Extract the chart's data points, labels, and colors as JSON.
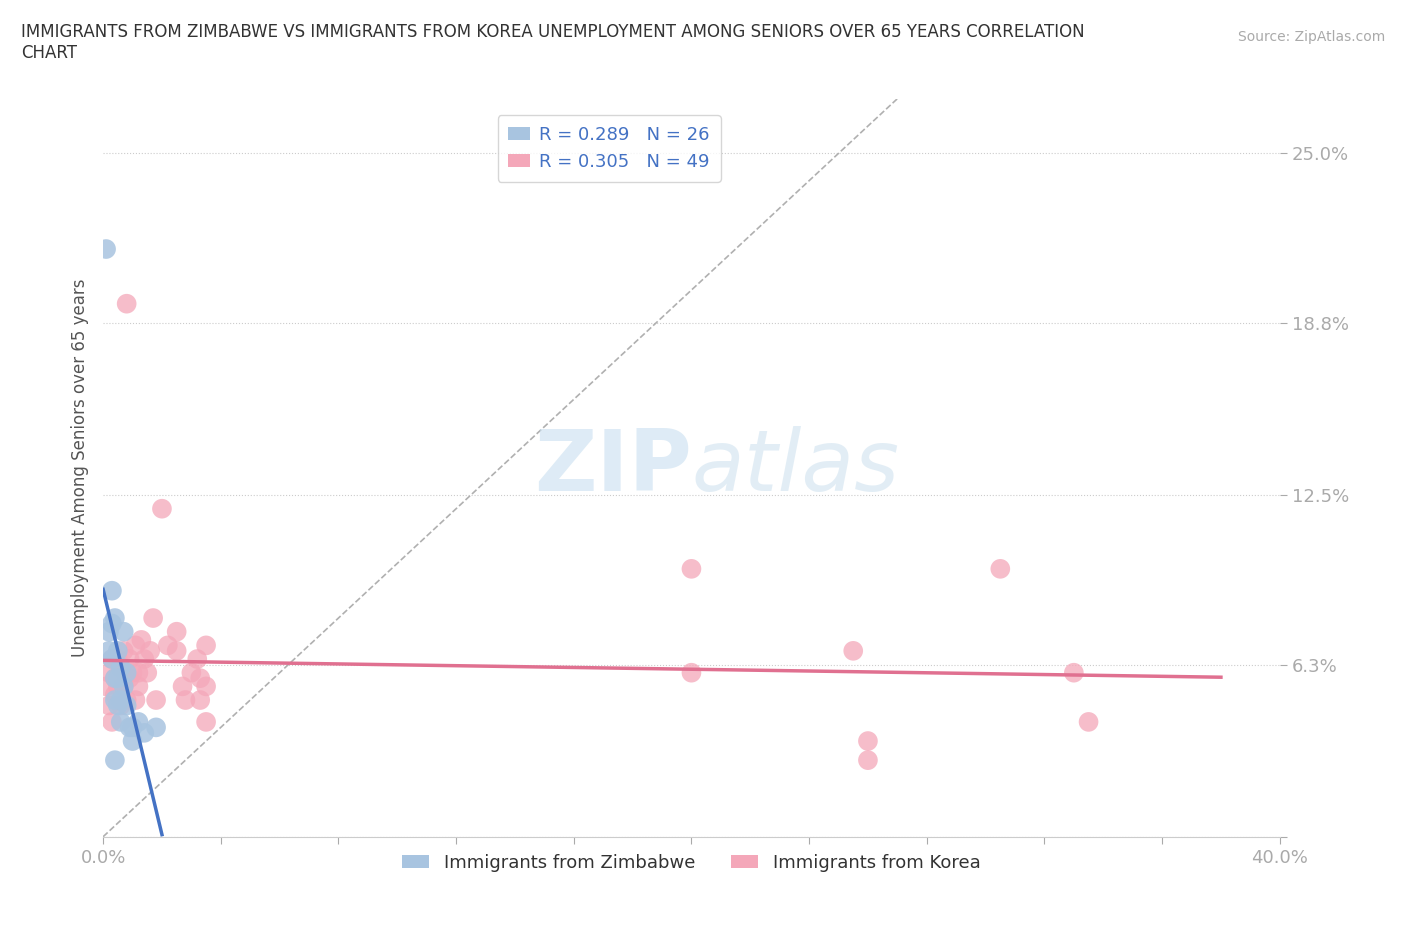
{
  "title": "IMMIGRANTS FROM ZIMBABWE VS IMMIGRANTS FROM KOREA UNEMPLOYMENT AMONG SENIORS OVER 65 YEARS CORRELATION\nCHART",
  "source_text": "Source: ZipAtlas.com",
  "ylabel": "Unemployment Among Seniors over 65 years",
  "xlabel": "",
  "xlim": [
    0.0,
    0.4
  ],
  "ylim": [
    0.0,
    0.27
  ],
  "xticks": [
    0.0,
    0.04,
    0.08,
    0.12,
    0.16,
    0.2,
    0.24,
    0.28,
    0.32,
    0.36,
    0.4
  ],
  "ytick_vals": [
    0.0,
    0.063,
    0.125,
    0.188,
    0.25
  ],
  "ytick_labels": [
    "",
    "6.3%",
    "12.5%",
    "18.8%",
    "25.0%"
  ],
  "bg_color": "#ffffff",
  "watermark_zip": "ZIP",
  "watermark_atlas": "atlas",
  "legend_R1": "R = 0.289",
  "legend_N1": "N = 26",
  "legend_R2": "R = 0.305",
  "legend_N2": "N = 49",
  "color_zim": "#a8c4e0",
  "color_kor": "#f4a7b9",
  "line_color_zim": "#4472c4",
  "line_color_kor": "#e07090",
  "scatter_zim": [
    [
      0.001,
      0.215
    ],
    [
      0.002,
      0.075
    ],
    [
      0.002,
      0.068
    ],
    [
      0.003,
      0.09
    ],
    [
      0.003,
      0.078
    ],
    [
      0.003,
      0.065
    ],
    [
      0.004,
      0.058
    ],
    [
      0.004,
      0.05
    ],
    [
      0.004,
      0.08
    ],
    [
      0.005,
      0.068
    ],
    [
      0.005,
      0.058
    ],
    [
      0.005,
      0.048
    ],
    [
      0.006,
      0.062
    ],
    [
      0.006,
      0.05
    ],
    [
      0.006,
      0.042
    ],
    [
      0.007,
      0.075
    ],
    [
      0.007,
      0.055
    ],
    [
      0.008,
      0.06
    ],
    [
      0.008,
      0.048
    ],
    [
      0.009,
      0.04
    ],
    [
      0.01,
      0.04
    ],
    [
      0.01,
      0.035
    ],
    [
      0.012,
      0.042
    ],
    [
      0.014,
      0.038
    ],
    [
      0.018,
      0.04
    ],
    [
      0.004,
      0.028
    ]
  ],
  "scatter_kor": [
    [
      0.001,
      0.055
    ],
    [
      0.002,
      0.048
    ],
    [
      0.002,
      0.06
    ],
    [
      0.003,
      0.065
    ],
    [
      0.003,
      0.042
    ],
    [
      0.004,
      0.058
    ],
    [
      0.004,
      0.052
    ],
    [
      0.005,
      0.065
    ],
    [
      0.005,
      0.055
    ],
    [
      0.006,
      0.06
    ],
    [
      0.006,
      0.048
    ],
    [
      0.007,
      0.068
    ],
    [
      0.007,
      0.055
    ],
    [
      0.008,
      0.05
    ],
    [
      0.008,
      0.195
    ],
    [
      0.009,
      0.065
    ],
    [
      0.009,
      0.058
    ],
    [
      0.01,
      0.06
    ],
    [
      0.011,
      0.07
    ],
    [
      0.011,
      0.05
    ],
    [
      0.012,
      0.06
    ],
    [
      0.012,
      0.055
    ],
    [
      0.013,
      0.072
    ],
    [
      0.014,
      0.065
    ],
    [
      0.015,
      0.06
    ],
    [
      0.016,
      0.068
    ],
    [
      0.017,
      0.08
    ],
    [
      0.018,
      0.05
    ],
    [
      0.02,
      0.12
    ],
    [
      0.022,
      0.07
    ],
    [
      0.025,
      0.075
    ],
    [
      0.025,
      0.068
    ],
    [
      0.027,
      0.055
    ],
    [
      0.028,
      0.05
    ],
    [
      0.03,
      0.06
    ],
    [
      0.032,
      0.065
    ],
    [
      0.033,
      0.058
    ],
    [
      0.033,
      0.05
    ],
    [
      0.035,
      0.07
    ],
    [
      0.035,
      0.055
    ],
    [
      0.035,
      0.042
    ],
    [
      0.2,
      0.098
    ],
    [
      0.2,
      0.06
    ],
    [
      0.255,
      0.068
    ],
    [
      0.26,
      0.035
    ],
    [
      0.26,
      0.028
    ],
    [
      0.305,
      0.098
    ],
    [
      0.33,
      0.06
    ],
    [
      0.335,
      0.042
    ]
  ]
}
